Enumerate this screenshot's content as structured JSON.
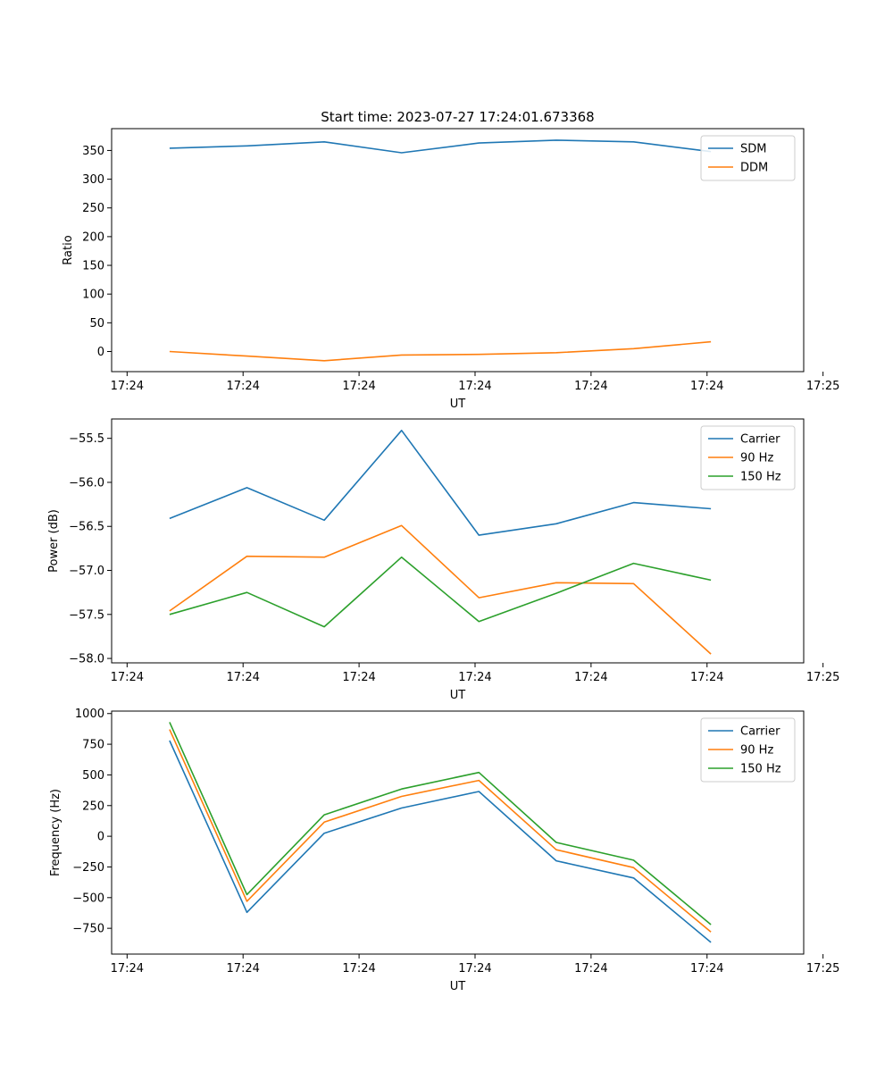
{
  "chart_data": [
    {
      "type": "line",
      "title": "Start time: 2023-07-27 17:24:01.673368",
      "xlabel": "UT",
      "ylabel": "Ratio",
      "x": [
        1,
        2,
        3,
        4,
        5,
        6,
        7,
        8
      ],
      "xlim": [
        0.25,
        9.2
      ],
      "xticks": [
        {
          "value": 0.45,
          "label": "17:24"
        },
        {
          "value": 1.95,
          "label": "17:24"
        },
        {
          "value": 3.45,
          "label": "17:24"
        },
        {
          "value": 4.95,
          "label": "17:24"
        },
        {
          "value": 6.45,
          "label": "17:24"
        },
        {
          "value": 7.95,
          "label": "17:24"
        },
        {
          "value": 9.45,
          "label": "17:25"
        }
      ],
      "ylim": [
        -35,
        388
      ],
      "yticks": [
        0,
        50,
        100,
        150,
        200,
        250,
        300,
        350
      ],
      "ytick_labels": [
        "0",
        "50",
        "100",
        "150",
        "200",
        "250",
        "300",
        "350"
      ],
      "legend": "top-right",
      "series": [
        {
          "name": "SDM",
          "color": "#1f77b4",
          "values": [
            354,
            358,
            365,
            346,
            363,
            368,
            365,
            348
          ]
        },
        {
          "name": "DDM",
          "color": "#ff7f0e",
          "values": [
            0,
            -8,
            -16,
            -6,
            -5,
            -2,
            5,
            17
          ]
        }
      ]
    },
    {
      "type": "line",
      "title": "",
      "xlabel": "UT",
      "ylabel": "Power (dB)",
      "x": [
        1,
        2,
        3,
        4,
        5,
        6,
        7,
        8
      ],
      "xlim": [
        0.25,
        9.2
      ],
      "xticks": [
        {
          "value": 0.45,
          "label": "17:24"
        },
        {
          "value": 1.95,
          "label": "17:24"
        },
        {
          "value": 3.45,
          "label": "17:24"
        },
        {
          "value": 4.95,
          "label": "17:24"
        },
        {
          "value": 6.45,
          "label": "17:24"
        },
        {
          "value": 7.95,
          "label": "17:24"
        },
        {
          "value": 9.45,
          "label": "17:25"
        }
      ],
      "ylim": [
        -58.05,
        -55.28
      ],
      "yticks": [
        -58.0,
        -57.5,
        -57.0,
        -56.5,
        -56.0,
        -55.5
      ],
      "ytick_labels": [
        "−58.0",
        "−57.5",
        "−57.0",
        "−56.5",
        "−56.0",
        "−55.5"
      ],
      "legend": "top-right",
      "series": [
        {
          "name": "Carrier",
          "color": "#1f77b4",
          "values": [
            -56.41,
            -56.06,
            -56.43,
            -55.41,
            -56.6,
            -56.47,
            -56.23,
            -56.3
          ]
        },
        {
          "name": "90 Hz",
          "color": "#ff7f0e",
          "values": [
            -57.46,
            -56.84,
            -56.85,
            -56.49,
            -57.31,
            -57.14,
            -57.15,
            -57.95
          ]
        },
        {
          "name": "150 Hz",
          "color": "#2ca02c",
          "values": [
            -57.5,
            -57.25,
            -57.64,
            -56.85,
            -57.58,
            -57.26,
            -56.92,
            -57.11
          ]
        }
      ]
    },
    {
      "type": "line",
      "title": "",
      "xlabel": "UT",
      "ylabel": "Frequency (Hz)",
      "x": [
        1,
        2,
        3,
        4,
        5,
        6,
        7,
        8
      ],
      "xlim": [
        0.25,
        9.2
      ],
      "xticks": [
        {
          "value": 0.45,
          "label": "17:24"
        },
        {
          "value": 1.95,
          "label": "17:24"
        },
        {
          "value": 3.45,
          "label": "17:24"
        },
        {
          "value": 4.95,
          "label": "17:24"
        },
        {
          "value": 6.45,
          "label": "17:24"
        },
        {
          "value": 7.95,
          "label": "17:24"
        },
        {
          "value": 9.45,
          "label": "17:25"
        }
      ],
      "ylim": [
        -960,
        1020
      ],
      "yticks": [
        -750,
        -500,
        -250,
        0,
        250,
        500,
        750,
        1000
      ],
      "ytick_labels": [
        "−750",
        "−500",
        "−250",
        "0",
        "250",
        "500",
        "750",
        "1000"
      ],
      "legend": "top-right",
      "series": [
        {
          "name": "Carrier",
          "color": "#1f77b4",
          "values": [
            780,
            -620,
            25,
            230,
            365,
            -200,
            -340,
            -865
          ]
        },
        {
          "name": "90 Hz",
          "color": "#ff7f0e",
          "values": [
            870,
            -530,
            115,
            325,
            455,
            -110,
            -255,
            -780
          ]
        },
        {
          "name": "150 Hz",
          "color": "#2ca02c",
          "values": [
            930,
            -475,
            175,
            385,
            520,
            -50,
            -195,
            -720
          ]
        }
      ]
    }
  ]
}
